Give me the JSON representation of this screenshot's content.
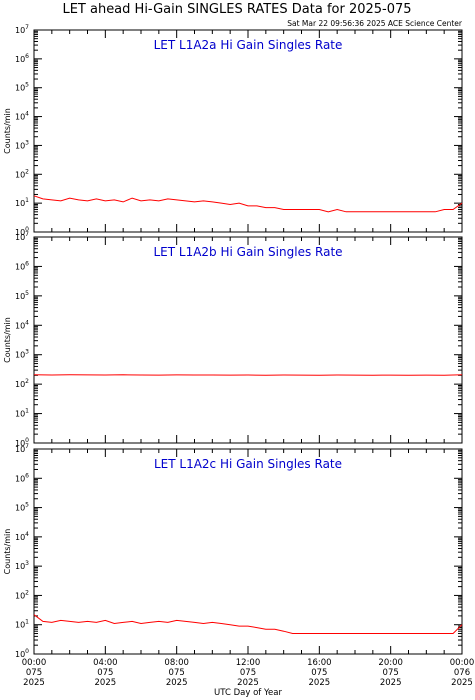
{
  "figure": {
    "title": "LET ahead Hi-Gain SINGLES RATES Data for 2025-075",
    "timestamp": "Sat Mar 22 09:56:36 2025 ACE Science Center",
    "xlabel": "UTC Day of Year"
  },
  "colors": {
    "series": "#ff0000",
    "panel_title": "#0000cc",
    "frame": "#000000"
  },
  "chart_data": [
    {
      "type": "line",
      "title": "LET L1A2a Hi Gain Singles Rate",
      "ylabel": "Counts/min",
      "yscale": "log",
      "ylim": [
        1,
        10000000
      ],
      "yticks": [
        1,
        10,
        100,
        1000,
        10000,
        100000,
        1000000,
        10000000
      ],
      "xlim": [
        0,
        24
      ],
      "xticks": [
        0,
        4,
        8,
        12,
        16,
        20,
        24
      ],
      "series": [
        {
          "x": [
            0,
            0.5,
            1,
            1.5,
            2,
            2.5,
            3,
            3.5,
            4,
            4.5,
            5,
            5.5,
            6,
            6.5,
            7,
            7.5,
            8,
            8.5,
            9,
            9.5,
            10,
            10.5,
            11,
            11.5,
            12,
            12.5,
            13,
            13.5,
            14,
            14.5,
            15,
            15.5,
            16,
            16.5,
            17,
            17.5,
            18,
            18.5,
            19,
            19.5,
            20,
            20.5,
            21,
            21.5,
            22,
            22.5,
            23,
            23.5,
            24
          ],
          "y": [
            18,
            14,
            13,
            12,
            15,
            13,
            12,
            14,
            12,
            13,
            11,
            15,
            12,
            13,
            12,
            14,
            13,
            12,
            11,
            12,
            11,
            10,
            9,
            10,
            8,
            8,
            7,
            7,
            6,
            6,
            6,
            6,
            6,
            5,
            6,
            5,
            5,
            5,
            5,
            5,
            5,
            5,
            5,
            5,
            5,
            5,
            6,
            6,
            10
          ]
        }
      ]
    },
    {
      "type": "line",
      "title": "LET L1A2b Hi Gain Singles Rate",
      "ylabel": "Counts/min",
      "yscale": "log",
      "ylim": [
        1,
        10000000
      ],
      "yticks": [
        1,
        10,
        100,
        1000,
        10000,
        100000,
        1000000,
        10000000
      ],
      "xlim": [
        0,
        24
      ],
      "xticks": [
        0,
        4,
        8,
        12,
        16,
        20,
        24
      ],
      "series": [
        {
          "x": [
            0,
            1,
            2,
            3,
            4,
            5,
            6,
            7,
            8,
            9,
            10,
            11,
            12,
            13,
            14,
            15,
            16,
            17,
            18,
            19,
            20,
            21,
            22,
            23,
            24
          ],
          "y": [
            210,
            205,
            208,
            206,
            204,
            207,
            205,
            203,
            206,
            204,
            205,
            203,
            204,
            202,
            204,
            203,
            202,
            204,
            203,
            202,
            203,
            202,
            203,
            202,
            210
          ]
        }
      ]
    },
    {
      "type": "line",
      "title": "LET L1A2c Hi Gain Singles Rate",
      "ylabel": "Counts/min",
      "yscale": "log",
      "ylim": [
        1,
        10000000
      ],
      "yticks": [
        1,
        10,
        100,
        1000,
        10000,
        100000,
        1000000,
        10000000
      ],
      "xlim": [
        0,
        24
      ],
      "xticks": [
        0,
        4,
        8,
        12,
        16,
        20,
        24
      ],
      "series": [
        {
          "x": [
            0,
            0.5,
            1,
            1.5,
            2,
            2.5,
            3,
            3.5,
            4,
            4.5,
            5,
            5.5,
            6,
            6.5,
            7,
            7.5,
            8,
            8.5,
            9,
            9.5,
            10,
            10.5,
            11,
            11.5,
            12,
            12.5,
            13,
            13.5,
            14,
            14.5,
            15,
            15.5,
            16,
            16.5,
            17,
            17.5,
            18,
            18.5,
            19,
            19.5,
            20,
            20.5,
            21,
            21.5,
            22,
            22.5,
            23,
            23.5,
            24
          ],
          "y": [
            22,
            13,
            12,
            14,
            13,
            12,
            13,
            12,
            14,
            11,
            12,
            13,
            11,
            12,
            13,
            12,
            14,
            13,
            12,
            11,
            12,
            11,
            10,
            9,
            9,
            8,
            7,
            7,
            6,
            5,
            5,
            5,
            5,
            5,
            5,
            5,
            5,
            5,
            5,
            5,
            5,
            5,
            5,
            5,
            5,
            5,
            5,
            5,
            10
          ]
        }
      ]
    }
  ],
  "xaxis": {
    "tick_labels": [
      [
        "00:00",
        "075",
        "2025"
      ],
      [
        "04:00",
        "075",
        "2025"
      ],
      [
        "08:00",
        "075",
        "2025"
      ],
      [
        "12:00",
        "075",
        "2025"
      ],
      [
        "16:00",
        "075",
        "2025"
      ],
      [
        "20:00",
        "075",
        "2025"
      ],
      [
        "00:00",
        "076",
        "2025"
      ]
    ]
  }
}
